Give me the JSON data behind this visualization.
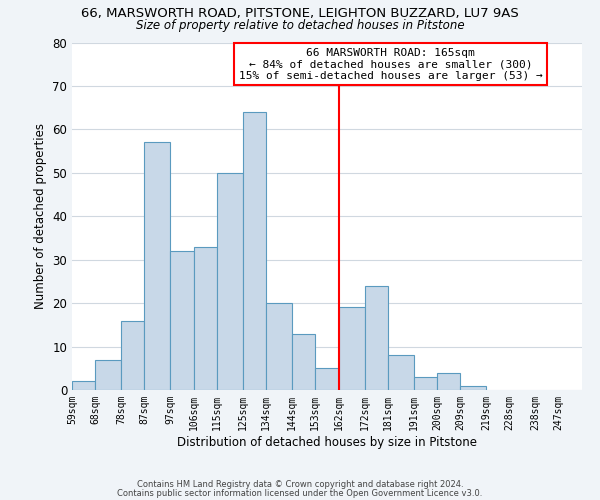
{
  "title1": "66, MARSWORTH ROAD, PITSTONE, LEIGHTON BUZZARD, LU7 9AS",
  "title2": "Size of property relative to detached houses in Pitstone",
  "xlabel": "Distribution of detached houses by size in Pitstone",
  "ylabel": "Number of detached properties",
  "bar_values": [
    2,
    7,
    16,
    57,
    32,
    33,
    50,
    64,
    20,
    13,
    5,
    19,
    24,
    8,
    3,
    4,
    1
  ],
  "bar_edges": [
    59,
    68,
    78,
    87,
    97,
    106,
    115,
    125,
    134,
    144,
    153,
    162,
    172,
    181,
    191,
    200,
    209,
    219
  ],
  "bar_labels": [
    "59sqm",
    "68sqm",
    "78sqm",
    "87sqm",
    "97sqm",
    "106sqm",
    "115sqm",
    "125sqm",
    "134sqm",
    "144sqm",
    "153sqm",
    "162sqm",
    "172sqm",
    "181sqm",
    "191sqm",
    "200sqm",
    "209sqm",
    "219sqm",
    "228sqm",
    "238sqm",
    "247sqm"
  ],
  "bar_color": "#c8d8e8",
  "bar_edge_color": "#5a9abf",
  "vline_x": 162,
  "vline_color": "red",
  "annotation_title": "66 MARSWORTH ROAD: 165sqm",
  "annotation_line1": "← 84% of detached houses are smaller (300)",
  "annotation_line2": "15% of semi-detached houses are larger (53) →",
  "ylim": [
    0,
    80
  ],
  "yticks": [
    0,
    10,
    20,
    30,
    40,
    50,
    60,
    70,
    80
  ],
  "footer1": "Contains HM Land Registry data © Crown copyright and database right 2024.",
  "footer2": "Contains public sector information licensed under the Open Government Licence v3.0.",
  "bg_color": "#f0f4f8",
  "plot_bg_color": "#ffffff",
  "grid_color": "#d0d8e0"
}
